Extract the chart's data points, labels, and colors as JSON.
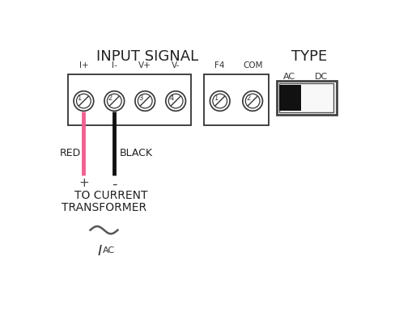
{
  "bg_color": "#ffffff",
  "title_input_signal": "INPUT SIGNAL",
  "title_type": "TYPE",
  "label_ac": "AC",
  "label_dc": "DC",
  "terminal_labels_top": [
    "I+",
    "I-",
    "V+",
    "V-"
  ],
  "terminal_labels_num": [
    "1",
    "2",
    "3",
    "4"
  ],
  "terminal_labels_top2": [
    "F4",
    "COM"
  ],
  "terminal_labels_num2": [
    "1",
    "2"
  ],
  "wire_red_color": "#f06090",
  "wire_black_color": "#111111",
  "text_red": "RED",
  "text_black": "BLACK",
  "text_plus": "+",
  "text_minus": "-",
  "text_line1": "TO CURRENT",
  "text_line2": "TRANSFORMER",
  "text_iac": "I",
  "text_ac_sub": "AC",
  "knob_fill": "#ffffff",
  "knob_edge": "#333333",
  "box_fill": "#ffffff",
  "box_edge": "#333333"
}
